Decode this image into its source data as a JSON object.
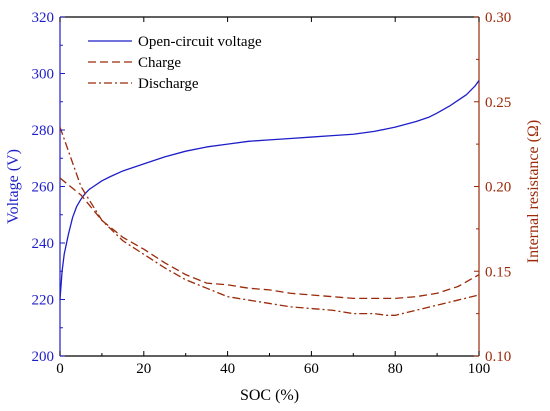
{
  "chart_data": {
    "type": "line",
    "xlabel": "SOC (%)",
    "ylabel_left": "Voltage (V)",
    "ylabel_right": "Internal resistance (Ω)",
    "xlim": [
      0,
      100
    ],
    "ylim_left": [
      200,
      320
    ],
    "ylim_right": [
      0.1,
      0.3
    ],
    "x_ticks": [
      "0",
      "20",
      "40",
      "60",
      "80",
      "100"
    ],
    "y_left_ticks": [
      "200",
      "220",
      "240",
      "260",
      "280",
      "300",
      "320"
    ],
    "y_right_ticks": [
      "0.10",
      "0.15",
      "0.20",
      "0.25",
      "0.30"
    ],
    "grid": false,
    "legend_position": "top-left",
    "colors": {
      "voltage": "#1e1ec8",
      "resistance": "#9b2a0a",
      "frame": "#000000"
    },
    "series": [
      {
        "name": "Open-circuit voltage",
        "axis": "left",
        "style": "solid",
        "x": [
          0,
          0.5,
          1,
          2,
          3,
          4,
          5,
          6,
          7,
          8,
          10,
          12,
          15,
          20,
          25,
          30,
          35,
          40,
          45,
          50,
          55,
          60,
          65,
          70,
          75,
          80,
          85,
          88,
          90,
          93,
          95,
          97,
          99,
          100
        ],
        "y": [
          220,
          230,
          236,
          243,
          249,
          253,
          255.5,
          257.5,
          259,
          260,
          262,
          263.5,
          265.5,
          268,
          270.5,
          272.5,
          274,
          275,
          276,
          276.5,
          277,
          277.5,
          278,
          278.5,
          279.5,
          281,
          283,
          284.5,
          286,
          288.5,
          290.5,
          292.5,
          295.5,
          297.5
        ]
      },
      {
        "name": "Charge",
        "axis": "right",
        "style": "dashed",
        "x": [
          0,
          5,
          10,
          15,
          20,
          25,
          30,
          35,
          40,
          45,
          50,
          55,
          60,
          65,
          70,
          75,
          80,
          85,
          90,
          95,
          100
        ],
        "y": [
          0.205,
          0.195,
          0.18,
          0.17,
          0.163,
          0.155,
          0.148,
          0.143,
          0.142,
          0.14,
          0.139,
          0.137,
          0.136,
          0.135,
          0.134,
          0.134,
          0.134,
          0.135,
          0.137,
          0.141,
          0.148
        ]
      },
      {
        "name": "Discharge",
        "axis": "right",
        "style": "dashdot",
        "x": [
          0,
          5,
          10,
          15,
          20,
          25,
          30,
          35,
          40,
          45,
          50,
          55,
          60,
          65,
          70,
          75,
          78,
          80,
          85,
          90,
          95,
          100
        ],
        "y": [
          0.235,
          0.2,
          0.18,
          0.168,
          0.16,
          0.152,
          0.145,
          0.14,
          0.135,
          0.133,
          0.131,
          0.129,
          0.128,
          0.127,
          0.125,
          0.125,
          0.124,
          0.124,
          0.127,
          0.13,
          0.133,
          0.136
        ]
      }
    ]
  }
}
